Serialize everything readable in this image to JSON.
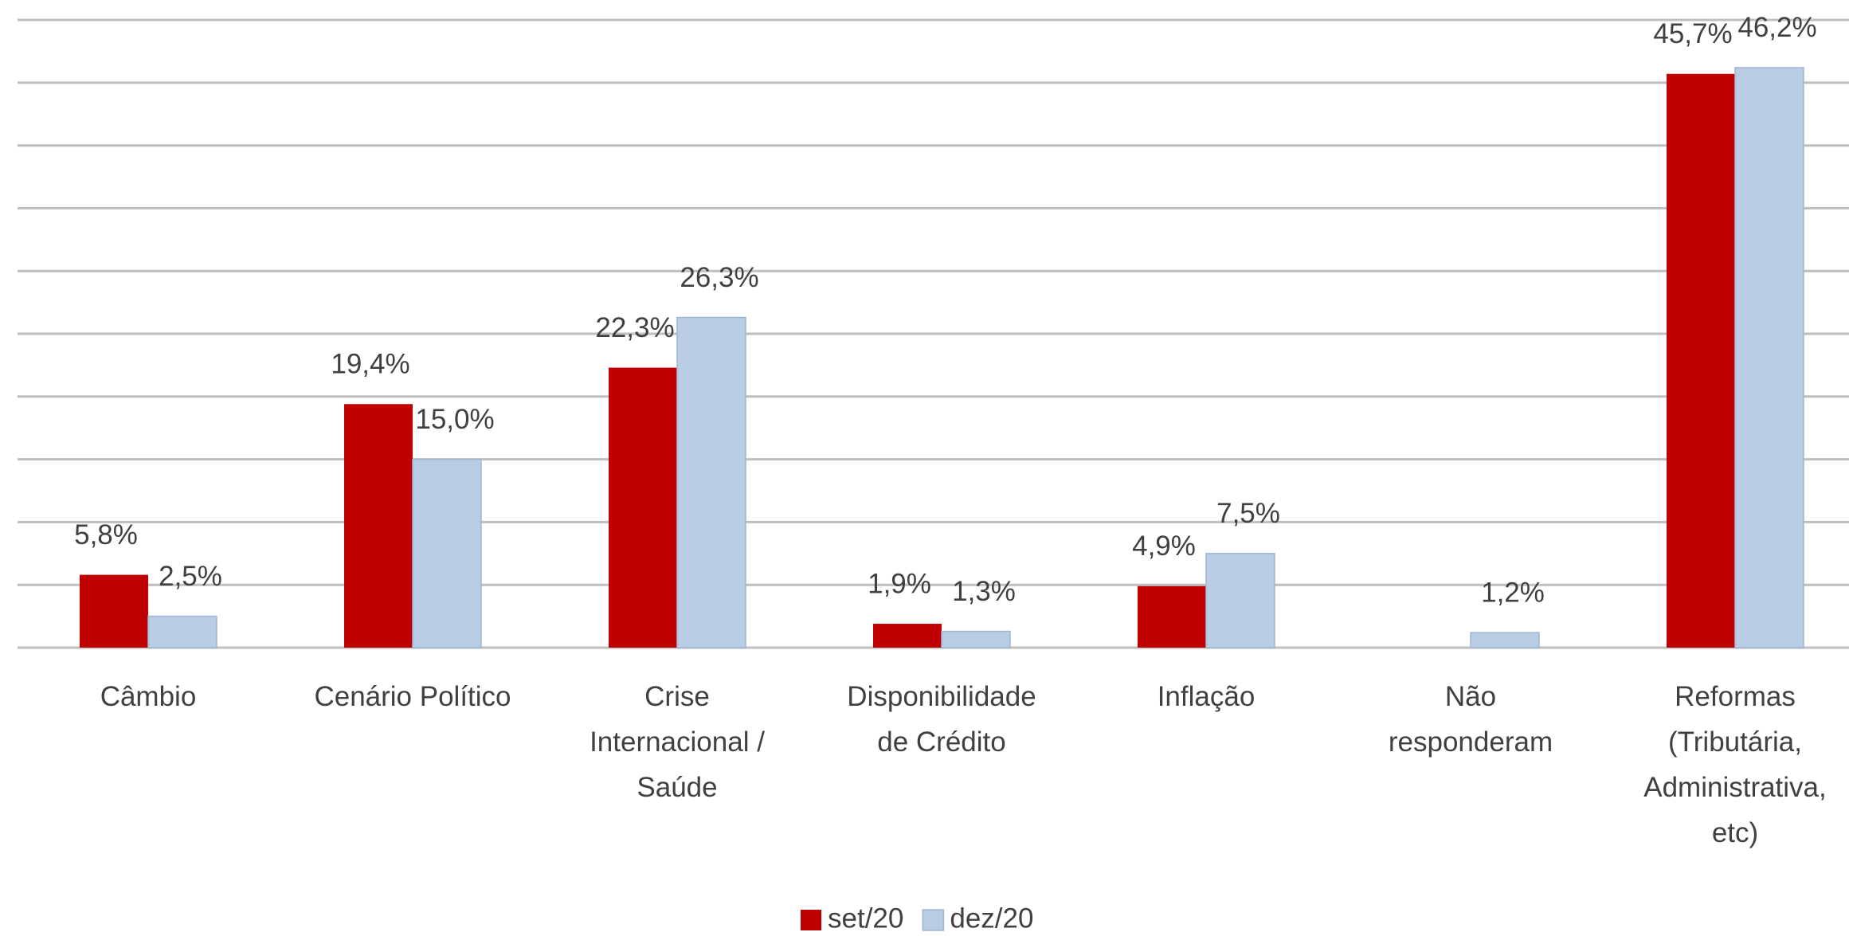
{
  "chart_data": {
    "type": "bar",
    "categories": [
      "Câmbio",
      "Cenário Político",
      "Crise\nInternacional /\nSaúde",
      "Disponibilidade\nde Crédito",
      "Inflação",
      "Não\nresponderam",
      "Reformas\n(Tributária,\nAdministrativa,\netc)"
    ],
    "series": [
      {
        "name": "set/20",
        "color": "#c00000",
        "values": [
          5.8,
          19.4,
          22.3,
          1.9,
          4.9,
          null,
          45.7
        ],
        "value_labels": [
          "5,8%",
          "19,4%",
          "22,3%",
          "1,9%",
          "4,9%",
          null,
          "45,7%"
        ]
      },
      {
        "name": "dez/20",
        "color": "#b8cce4",
        "values": [
          2.5,
          15.0,
          26.3,
          1.3,
          7.5,
          1.2,
          46.2
        ],
        "value_labels": [
          "2,5%",
          "15,0%",
          "26,3%",
          "1,3%",
          "7,5%",
          "1,2%",
          "46,2%"
        ]
      }
    ],
    "ylim": [
      0,
      50
    ],
    "yticks": [
      0,
      5,
      10,
      15,
      20,
      25,
      30,
      35,
      40,
      45,
      50
    ],
    "grid": true,
    "legend": "bottom"
  }
}
